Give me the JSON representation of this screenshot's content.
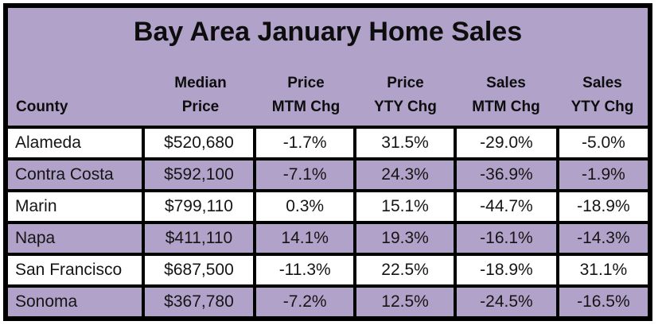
{
  "chart_data": {
    "type": "table",
    "title": "Bay Area January Home Sales",
    "columns": [
      {
        "id": "county",
        "header_lines": [
          "County"
        ]
      },
      {
        "id": "median_price",
        "header_lines": [
          "Median",
          "Price"
        ]
      },
      {
        "id": "price_mtm_chg",
        "header_lines": [
          "Price",
          "MTM Chg"
        ]
      },
      {
        "id": "price_yty_chg",
        "header_lines": [
          "Price",
          "YTY Chg"
        ]
      },
      {
        "id": "sales_mtm_chg",
        "header_lines": [
          "Sales",
          "MTM Chg"
        ]
      },
      {
        "id": "sales_yty_chg",
        "header_lines": [
          "Sales",
          "YTY Chg"
        ]
      }
    ],
    "rows": [
      {
        "county": "Alameda",
        "median_price": "$520,680",
        "price_mtm_chg": "-1.7%",
        "price_yty_chg": "31.5%",
        "sales_mtm_chg": "-29.0%",
        "sales_yty_chg": "-5.0%"
      },
      {
        "county": "Contra Costa",
        "median_price": "$592,100",
        "price_mtm_chg": "-7.1%",
        "price_yty_chg": "24.3%",
        "sales_mtm_chg": "-36.9%",
        "sales_yty_chg": "-1.9%"
      },
      {
        "county": "Marin",
        "median_price": "$799,110",
        "price_mtm_chg": "0.3%",
        "price_yty_chg": "15.1%",
        "sales_mtm_chg": "-44.7%",
        "sales_yty_chg": "-18.9%"
      },
      {
        "county": "Napa",
        "median_price": "$411,110",
        "price_mtm_chg": "14.1%",
        "price_yty_chg": "19.3%",
        "sales_mtm_chg": "-16.1%",
        "sales_yty_chg": "-14.3%"
      },
      {
        "county": "San Francisco",
        "median_price": "$687,500",
        "price_mtm_chg": "-11.3%",
        "price_yty_chg": "22.5%",
        "sales_mtm_chg": "-18.9%",
        "sales_yty_chg": "31.1%"
      },
      {
        "county": "Sonoma",
        "median_price": "$367,780",
        "price_mtm_chg": "-7.2%",
        "price_yty_chg": "12.5%",
        "sales_mtm_chg": "-24.5%",
        "sales_yty_chg": "-16.5%"
      }
    ]
  },
  "colors": {
    "header_background": "#b1a2c9",
    "row_alternate": "#b1a2c9",
    "row_base": "#ffffff",
    "border": "#000000",
    "text": "#141414"
  }
}
